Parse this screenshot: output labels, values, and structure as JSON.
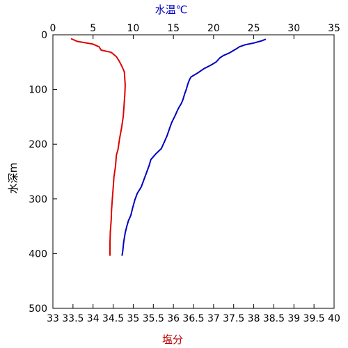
{
  "chart_data": {
    "type": "line",
    "title": "",
    "top_axis": {
      "label": "水温℃",
      "label_color": "#0000c0",
      "range": [
        0,
        35
      ],
      "ticks": [
        "0",
        "5",
        "10",
        "15",
        "20",
        "25",
        "30",
        "35"
      ],
      "tick_values": [
        0,
        5,
        10,
        15,
        20,
        25,
        30,
        35
      ]
    },
    "bottom_axis": {
      "label": "塩分",
      "label_color": "#c00000",
      "range": [
        33,
        40
      ],
      "ticks": [
        "33",
        "33.5",
        "34",
        "34.5",
        "35",
        "35.5",
        "36",
        "36.5",
        "37",
        "37.5",
        "38",
        "38.5",
        "39",
        "39.5",
        "40"
      ],
      "tick_values": [
        33,
        33.5,
        34,
        34.5,
        35,
        35.5,
        36,
        36.5,
        37,
        37.5,
        38,
        38.5,
        39,
        39.5,
        40
      ]
    },
    "left_axis": {
      "label": "水深m",
      "range": [
        0,
        500
      ],
      "inverted": true,
      "ticks": [
        "0",
        "100",
        "200",
        "300",
        "400",
        "500"
      ],
      "tick_values": [
        0,
        100,
        200,
        300,
        400,
        500
      ]
    },
    "grid": false,
    "series": [
      {
        "axis": "top",
        "color": "#0000c0",
        "points": [
          [
            26.5,
            8
          ],
          [
            26.0,
            11
          ],
          [
            25.0,
            15
          ],
          [
            24.0,
            18
          ],
          [
            23.2,
            22
          ],
          [
            22.8,
            26
          ],
          [
            22.0,
            33
          ],
          [
            21.2,
            38
          ],
          [
            20.8,
            42
          ],
          [
            20.3,
            50
          ],
          [
            19.6,
            56
          ],
          [
            18.8,
            62
          ],
          [
            18.0,
            70
          ],
          [
            17.2,
            77
          ],
          [
            17.0,
            82
          ],
          [
            16.8,
            90
          ],
          [
            16.6,
            100
          ],
          [
            16.4,
            108
          ],
          [
            16.2,
            118
          ],
          [
            16.0,
            125
          ],
          [
            15.6,
            135
          ],
          [
            15.2,
            148
          ],
          [
            14.8,
            160
          ],
          [
            14.5,
            172
          ],
          [
            14.2,
            185
          ],
          [
            13.9,
            195
          ],
          [
            13.5,
            208
          ],
          [
            12.8,
            218
          ],
          [
            12.2,
            228
          ],
          [
            12.0,
            238
          ],
          [
            11.7,
            250
          ],
          [
            11.4,
            262
          ],
          [
            11.0,
            278
          ],
          [
            10.5,
            290
          ],
          [
            10.2,
            302
          ],
          [
            9.9,
            318
          ],
          [
            9.7,
            330
          ],
          [
            9.4,
            340
          ],
          [
            9.2,
            350
          ],
          [
            9.0,
            362
          ],
          [
            8.8,
            380
          ],
          [
            8.7,
            395
          ],
          [
            8.6,
            404
          ]
        ]
      },
      {
        "axis": "bottom",
        "color": "#e00000",
        "points": [
          [
            33.45,
            7
          ],
          [
            33.6,
            12
          ],
          [
            34.0,
            17
          ],
          [
            34.15,
            22
          ],
          [
            34.2,
            28
          ],
          [
            34.45,
            32
          ],
          [
            34.58,
            40
          ],
          [
            34.65,
            48
          ],
          [
            34.72,
            58
          ],
          [
            34.78,
            68
          ],
          [
            34.79,
            80
          ],
          [
            34.8,
            92
          ],
          [
            34.79,
            110
          ],
          [
            34.77,
            130
          ],
          [
            34.75,
            150
          ],
          [
            34.71,
            170
          ],
          [
            34.66,
            190
          ],
          [
            34.62,
            210
          ],
          [
            34.58,
            220
          ],
          [
            34.56,
            240
          ],
          [
            34.52,
            260
          ],
          [
            34.5,
            280
          ],
          [
            34.48,
            300
          ],
          [
            34.46,
            320
          ],
          [
            34.45,
            340
          ],
          [
            34.43,
            360
          ],
          [
            34.42,
            380
          ],
          [
            34.42,
            395
          ],
          [
            34.42,
            404
          ]
        ]
      }
    ]
  }
}
